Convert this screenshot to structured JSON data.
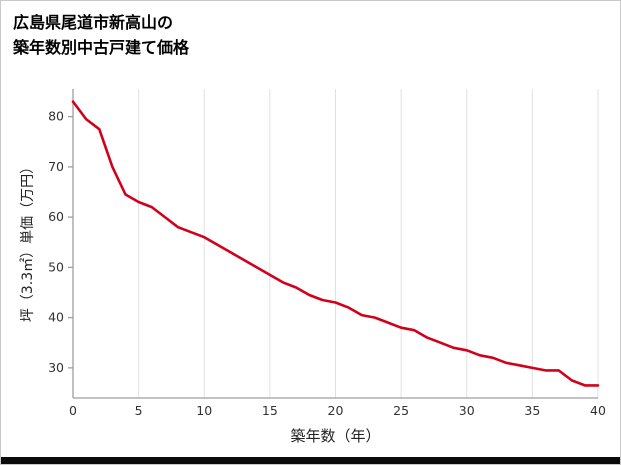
{
  "header": {
    "title_line1": "広島県尾道市新高山の",
    "title_line2": "築年数別中古戸建て価格"
  },
  "chart_data": {
    "type": "line",
    "title": "広島県尾道市新高山の築年数別中古戸建て価格",
    "xlabel": "築年数（年）",
    "ylabel": "坪（3.3㎡）単価（万円）",
    "x": [
      0,
      1,
      2,
      3,
      4,
      5,
      6,
      7,
      8,
      9,
      10,
      11,
      12,
      13,
      14,
      15,
      16,
      17,
      18,
      19,
      20,
      21,
      22,
      23,
      24,
      25,
      26,
      27,
      28,
      29,
      30,
      31,
      32,
      33,
      34,
      35,
      36,
      37,
      38,
      39,
      40
    ],
    "values": [
      83,
      79.5,
      77.5,
      70,
      64.5,
      63,
      62,
      60,
      58,
      57,
      56,
      54.5,
      53,
      51.5,
      50,
      48.5,
      47,
      46,
      44.5,
      43.5,
      43,
      42,
      40.5,
      40,
      39,
      38,
      37.5,
      36,
      35,
      34,
      33.5,
      32.5,
      32,
      31,
      30.5,
      30,
      29.5,
      29.5,
      27.5,
      26.5,
      26.5
    ],
    "xlim": [
      0,
      40
    ],
    "ylim": [
      24,
      85.5
    ],
    "x_ticks": [
      0,
      5,
      10,
      15,
      20,
      25,
      30,
      35,
      40
    ],
    "y_ticks": [
      30,
      40,
      50,
      60,
      70,
      80
    ],
    "line_color": "#d0021b",
    "grid_color": "#e0e0e0",
    "axis_color": "#9e9e9e",
    "tick_text_color": "#333333",
    "legend": "none",
    "grid": "vertical-only"
  }
}
